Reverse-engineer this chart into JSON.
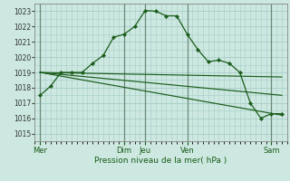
{
  "title": "Pression niveau de la mer( hPa )",
  "background_color": "#cce8e0",
  "grid_color": "#a8ccc8",
  "line_color": "#1a5c1a",
  "vline_color": "#6a8a7a",
  "ylim": [
    1014.5,
    1023.5
  ],
  "yticks": [
    1015,
    1016,
    1017,
    1018,
    1019,
    1020,
    1021,
    1022,
    1023
  ],
  "xlim": [
    0,
    48
  ],
  "day_tick_pos": [
    1,
    17,
    21,
    29,
    45
  ],
  "day_tick_labels": [
    "Mer",
    "Dim",
    "Jeu",
    "Ven",
    "Sam"
  ],
  "vline_positions": [
    1,
    17,
    21,
    29,
    45
  ],
  "main_x": [
    1,
    3,
    5,
    7,
    9,
    11,
    13,
    15,
    17,
    19,
    21,
    23,
    25,
    27,
    29,
    31,
    33,
    35,
    37,
    39,
    41,
    43,
    45,
    47
  ],
  "main_y": [
    1017.5,
    1018.1,
    1019.0,
    1019.0,
    1019.0,
    1019.6,
    1020.1,
    1021.3,
    1021.5,
    1022.0,
    1023.05,
    1023.0,
    1022.7,
    1022.7,
    1021.5,
    1020.5,
    1019.7,
    1019.8,
    1019.6,
    1019.0,
    1017.0,
    1016.0,
    1016.3,
    1016.3
  ],
  "trend1_x": [
    1,
    47
  ],
  "trend1_y": [
    1019.0,
    1018.7
  ],
  "trend2_x": [
    1,
    47
  ],
  "trend2_y": [
    1019.0,
    1017.5
  ],
  "trend3_x": [
    1,
    47
  ],
  "trend3_y": [
    1019.0,
    1016.2
  ]
}
